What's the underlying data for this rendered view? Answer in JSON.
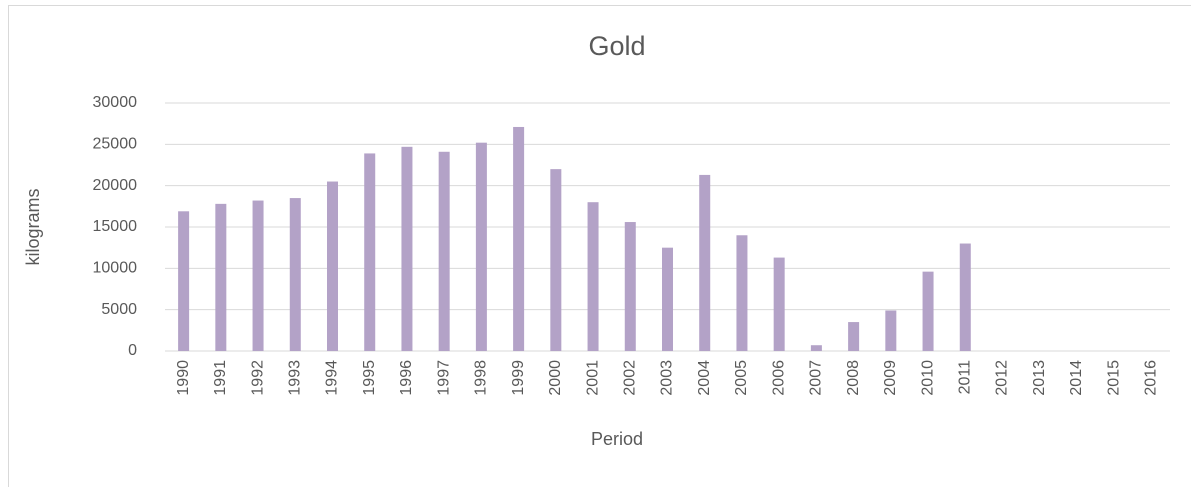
{
  "chart_data": {
    "type": "bar",
    "title": "Gold",
    "xlabel": "Period",
    "ylabel": "kilograms",
    "categories": [
      "1990",
      "1991",
      "1992",
      "1993",
      "1994",
      "1995",
      "1996",
      "1997",
      "1998",
      "1999",
      "2000",
      "2001",
      "2002",
      "2003",
      "2004",
      "2005",
      "2006",
      "2007",
      "2008",
      "2009",
      "2010",
      "2011",
      "2012",
      "2013",
      "2014",
      "2015",
      "2016"
    ],
    "values": [
      16900,
      17800,
      18200,
      18500,
      20500,
      23900,
      24700,
      24100,
      25200,
      27100,
      22000,
      18000,
      15600,
      12500,
      21300,
      14000,
      11300,
      700,
      3500,
      4900,
      9600,
      13000,
      null,
      null,
      null,
      null,
      null
    ],
    "color": "#b3a2c7",
    "ylim": [
      0,
      30000
    ],
    "yticks": [
      0,
      5000,
      10000,
      15000,
      20000,
      25000,
      30000
    ],
    "grid": true
  }
}
